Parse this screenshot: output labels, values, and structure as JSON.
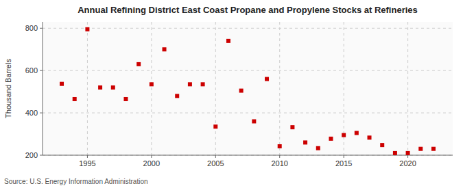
{
  "chart_data": {
    "type": "scatter",
    "title": "Annual Refining District East Coast Propane and Propylene Stocks at Refineries",
    "ylabel": "Thousand Barrels",
    "annotations": [
      "Source: U.S. Energy Information Administration"
    ],
    "x": [
      1993,
      1994,
      1995,
      1996,
      1997,
      1998,
      1999,
      2000,
      2001,
      2002,
      2003,
      2004,
      2005,
      2006,
      2007,
      2008,
      2009,
      2010,
      2011,
      2012,
      2013,
      2014,
      2015,
      2016,
      2017,
      2018,
      2019,
      2020,
      2021,
      2022
    ],
    "values": [
      537,
      465,
      795,
      520,
      520,
      465,
      630,
      535,
      700,
      480,
      535,
      535,
      335,
      740,
      505,
      360,
      560,
      242,
      332,
      260,
      233,
      278,
      295,
      305,
      283,
      248,
      210,
      210,
      230,
      230
    ],
    "color": "#cc0000",
    "marker": "square",
    "xlim": [
      1991.5,
      2023.5
    ],
    "xticks": [
      1995,
      2000,
      2005,
      2010,
      2015,
      2020
    ],
    "ylim": [
      200,
      830
    ],
    "yticks": [
      200,
      400,
      600,
      800
    ],
    "grid": true
  }
}
